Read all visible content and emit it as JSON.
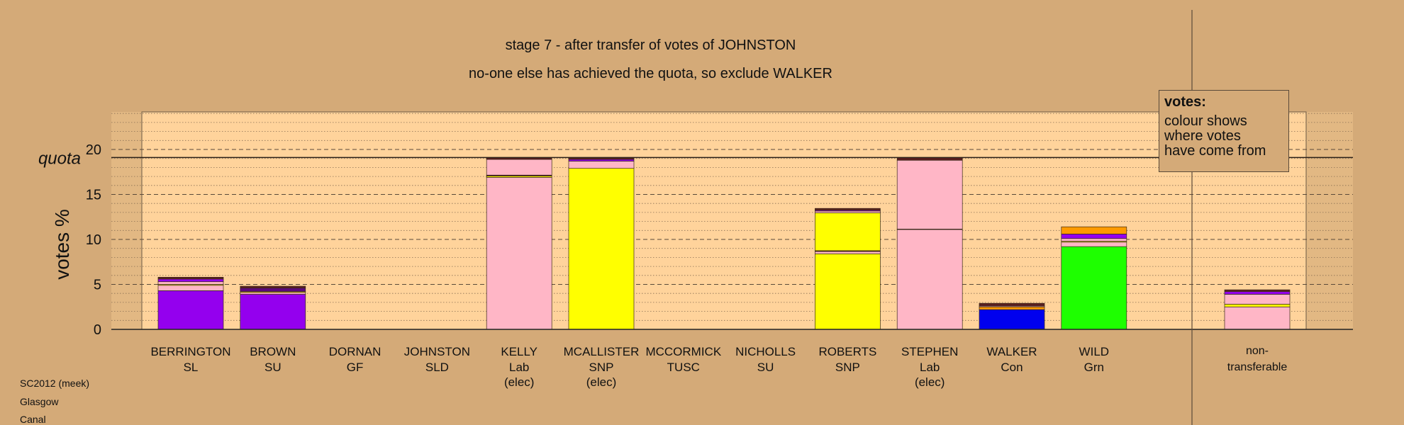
{
  "titles": {
    "line1": "stage 7 - after transfer of votes of JOHNSTON",
    "line2": "no-one else has achieved the quota, so exclude WALKER"
  },
  "legend": {
    "title": "votes:",
    "lines": [
      "colour shows",
      "where votes",
      "have come from"
    ]
  },
  "footer": [
    "SC2012 (meek)",
    "Glasgow",
    "Canal"
  ],
  "colors": {
    "background": "#d4aa78",
    "plot_bg": "#ffd39b",
    "SL": "#9400ee",
    "SU": "#5b0a7a",
    "Lab": "#ffb6c6",
    "SNP": "#ffff00",
    "Grn": "#1eff00",
    "Con": "#0000ee",
    "Other": "#ff9a00",
    "Dark": "#5a1f1f"
  },
  "chart_data": {
    "type": "bar",
    "ylabel": "votes %",
    "quota_label": "quota",
    "quota": 19.1,
    "ylim": [
      0,
      24
    ],
    "yticks": [
      0,
      5,
      10,
      15,
      20
    ],
    "categories": [
      {
        "name": "BERRINGTON",
        "party": "SL",
        "note": ""
      },
      {
        "name": "BROWN",
        "party": "SU",
        "note": ""
      },
      {
        "name": "DORNAN",
        "party": "GF",
        "note": ""
      },
      {
        "name": "JOHNSTON",
        "party": "SLD",
        "note": ""
      },
      {
        "name": "KELLY",
        "party": "Lab",
        "note": "(elec)"
      },
      {
        "name": "MCALLISTER",
        "party": "SNP",
        "note": "(elec)"
      },
      {
        "name": "MCCORMICK",
        "party": "TUSC",
        "note": ""
      },
      {
        "name": "NICHOLLS",
        "party": "SU",
        "note": ""
      },
      {
        "name": "ROBERTS",
        "party": "SNP",
        "note": ""
      },
      {
        "name": "STEPHEN",
        "party": "Lab",
        "note": "(elec)"
      },
      {
        "name": "WALKER",
        "party": "Con",
        "note": ""
      },
      {
        "name": "WILD",
        "party": "Grn",
        "note": ""
      }
    ],
    "nontransferable_label": [
      "non-",
      "transferable"
    ],
    "stacks": [
      [
        {
          "c": "SL",
          "v": 4.3
        },
        {
          "c": "Lab",
          "v": 0.6
        },
        {
          "c": "SNP",
          "v": 0.1
        },
        {
          "c": "Lab",
          "v": 0.3
        },
        {
          "c": "SL",
          "v": 0.3
        },
        {
          "c": "Dark",
          "v": 0.2
        }
      ],
      [
        {
          "c": "SL",
          "v": 3.9
        },
        {
          "c": "Lab",
          "v": 0.2
        },
        {
          "c": "SNP",
          "v": 0.1
        },
        {
          "c": "SU",
          "v": 0.4
        },
        {
          "c": "Dark",
          "v": 0.2
        }
      ],
      [],
      [],
      [
        {
          "c": "Lab",
          "v": 16.9
        },
        {
          "c": "SNP",
          "v": 0.15
        },
        {
          "c": "Dark",
          "v": 0.1
        },
        {
          "c": "Lab",
          "v": 1.75
        },
        {
          "c": "Dark",
          "v": 0.2
        }
      ],
      [
        {
          "c": "SNP",
          "v": 17.9
        },
        {
          "c": "Lab",
          "v": 0.8
        },
        {
          "c": "SL",
          "v": 0.2
        },
        {
          "c": "Dark",
          "v": 0.2
        }
      ],
      [],
      [],
      [
        {
          "c": "SNP",
          "v": 8.4
        },
        {
          "c": "Lab",
          "v": 0.25
        },
        {
          "c": "Dark",
          "v": 0.1
        },
        {
          "c": "SNP",
          "v": 4.2
        },
        {
          "c": "Lab",
          "v": 0.2
        },
        {
          "c": "SL",
          "v": 0.1
        },
        {
          "c": "Dark",
          "v": 0.2
        }
      ],
      [
        {
          "c": "Lab",
          "v": 11.1
        },
        {
          "c": "Dark",
          "v": 0.05
        },
        {
          "c": "Lab",
          "v": 7.65
        },
        {
          "c": "Dark",
          "v": 0.3
        }
      ],
      [
        {
          "c": "Con",
          "v": 2.2
        },
        {
          "c": "Other",
          "v": 0.3
        },
        {
          "c": "Lab",
          "v": 0.1
        },
        {
          "c": "Dark",
          "v": 0.3
        }
      ],
      [
        {
          "c": "Grn",
          "v": 9.2
        },
        {
          "c": "Lab",
          "v": 0.5
        },
        {
          "c": "SNP",
          "v": 0.1
        },
        {
          "c": "Lab",
          "v": 0.3
        },
        {
          "c": "SL",
          "v": 0.5
        },
        {
          "c": "Other",
          "v": 0.8
        }
      ]
    ],
    "nontransferable": [
      {
        "c": "Lab",
        "v": 2.5
      },
      {
        "c": "SNP",
        "v": 0.3
      },
      {
        "c": "Lab",
        "v": 1.1
      },
      {
        "c": "SL",
        "v": 0.3
      },
      {
        "c": "Dark",
        "v": 0.2
      }
    ]
  }
}
